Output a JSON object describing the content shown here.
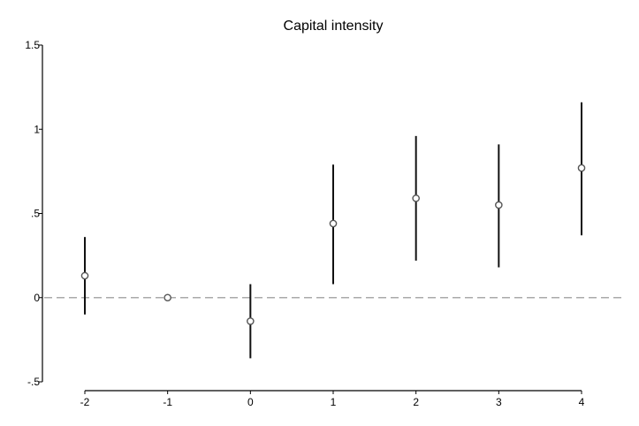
{
  "chart_data": {
    "type": "scatter",
    "title": "Capital intensity",
    "xlabel": "",
    "ylabel": "",
    "x": [
      -2,
      -1,
      0,
      1,
      2,
      3,
      4
    ],
    "y": [
      0.13,
      0.0,
      -0.14,
      0.44,
      0.59,
      0.55,
      0.77
    ],
    "ci_low": [
      -0.1,
      0.0,
      -0.36,
      0.08,
      0.22,
      0.18,
      0.37
    ],
    "ci_high": [
      0.36,
      0.0,
      0.08,
      0.79,
      0.96,
      0.91,
      1.16
    ],
    "xlim": [
      -2,
      4
    ],
    "ylim": [
      -0.5,
      1.5
    ],
    "x_ticks": [
      -2,
      -1,
      0,
      1,
      2,
      3,
      4
    ],
    "x_tick_labels": [
      "-2",
      "-1",
      "0",
      "1",
      "2",
      "3",
      "4"
    ],
    "y_ticks": [
      -0.5,
      0,
      0.5,
      1,
      1.5
    ],
    "y_tick_labels": [
      "-.5",
      "0",
      ".5",
      "1",
      "1.5"
    ],
    "reference_line_y": 0,
    "grid": false,
    "legend": "none",
    "colors": {
      "marker": "#555555",
      "ci": "#111111",
      "reference": "#aaaaaa",
      "axis": "#000000"
    }
  }
}
